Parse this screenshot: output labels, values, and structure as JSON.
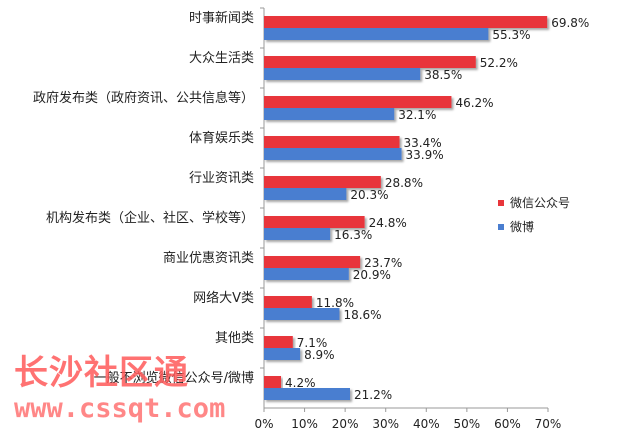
{
  "chart_data": {
    "type": "bar",
    "orientation": "horizontal",
    "categories": [
      "时事新闻类",
      "大众生活类",
      "政府发布类（政府资讯、公共信息等）",
      "体育娱乐类",
      "行业资讯类",
      "机构发布类（企业、社区、学校等）",
      "商业优惠资讯类",
      "网络大V类",
      "其他类",
      "一般不浏览微信公众号/微博"
    ],
    "series": [
      {
        "name": "微信公众号",
        "color": "#e8353b",
        "values": [
          69.8,
          52.2,
          46.2,
          33.4,
          28.8,
          24.8,
          23.7,
          11.8,
          7.1,
          4.2
        ],
        "labels": [
          "69.8%",
          "52.2%",
          "46.2%",
          "33.4%",
          "28.8%",
          "24.8%",
          "23.7%",
          "11.8%",
          "7.1%",
          "4.2%"
        ]
      },
      {
        "name": "微博",
        "color": "#4a7ed0",
        "values": [
          55.3,
          38.5,
          32.1,
          33.9,
          20.3,
          16.3,
          20.9,
          18.6,
          8.9,
          21.2
        ],
        "labels": [
          "55.3%",
          "38.5%",
          "32.1%",
          "33.9%",
          "20.3%",
          "16.3%",
          "20.9%",
          "18.6%",
          "8.9%",
          "21.2%"
        ]
      }
    ],
    "xlim": [
      0,
      70
    ],
    "xticks": [
      "0%",
      "10%",
      "20%",
      "30%",
      "40%",
      "50%",
      "60%",
      "70%"
    ],
    "xtick_values": [
      0,
      10,
      20,
      30,
      40,
      50,
      60,
      70
    ],
    "grid": false,
    "legend_position": "right"
  },
  "watermark": {
    "text": "长沙社区通",
    "url": "www.cssqt.com"
  }
}
